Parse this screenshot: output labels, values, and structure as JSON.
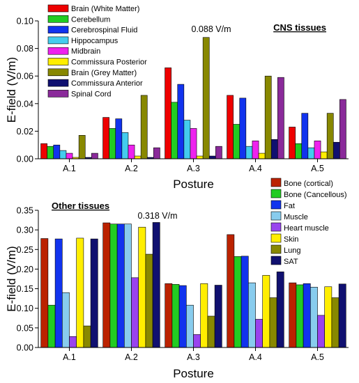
{
  "chart_data": [
    {
      "type": "bar",
      "panel_title": "CNS tissues",
      "categories": [
        "A.1",
        "A.2",
        "A.3",
        "A.4",
        "A.5"
      ],
      "xlabel": "Posture",
      "ylabel": "E-field (V/m)",
      "ylim": [
        0,
        0.1
      ],
      "yticks": [
        "0.00",
        "0.02",
        "0.04",
        "0.06",
        "0.08",
        "0.10"
      ],
      "annotation": "0.088 V/m",
      "grid": false,
      "legend_position": "top-left",
      "series": [
        {
          "name": "Brain (White Matter)",
          "color": "#ee0000",
          "values": [
            0.011,
            0.03,
            0.066,
            0.046,
            0.023
          ]
        },
        {
          "name": "Cerebellum",
          "color": "#22cc22",
          "values": [
            0.009,
            0.022,
            0.041,
            0.025,
            0.011
          ]
        },
        {
          "name": "Cerebrospinal Fluid",
          "color": "#1133ee",
          "values": [
            0.01,
            0.029,
            0.054,
            0.044,
            0.033
          ]
        },
        {
          "name": "Hippocampus",
          "color": "#44ccee",
          "values": [
            0.006,
            0.019,
            0.028,
            0.009,
            0.008
          ]
        },
        {
          "name": "Midbrain",
          "color": "#ee22ee",
          "values": [
            0.004,
            0.01,
            0.022,
            0.013,
            0.013
          ]
        },
        {
          "name": "Commissura Posterior",
          "color": "#ffee00",
          "values": [
            0.001,
            0.002,
            0.002,
            0.004,
            0.005
          ]
        },
        {
          "name": "Brain (Grey Matter)",
          "color": "#888800",
          "values": [
            0.017,
            0.046,
            0.088,
            0.06,
            0.033
          ]
        },
        {
          "name": "Commissura Anterior",
          "color": "#101070",
          "values": [
            0.001,
            0.001,
            0.002,
            0.014,
            0.012
          ]
        },
        {
          "name": "Spinal Cord",
          "color": "#8a2a9a",
          "values": [
            0.004,
            0.008,
            0.009,
            0.059,
            0.043
          ]
        }
      ]
    },
    {
      "type": "bar",
      "panel_title": "Other tissues",
      "categories": [
        "A.1",
        "A.2",
        "A.3",
        "A.4",
        "A.5"
      ],
      "xlabel": "Posture",
      "ylabel": "E-field (V/m)",
      "ylim": [
        0,
        0.35
      ],
      "yticks": [
        "0.00",
        "0.05",
        "0.10",
        "0.15",
        "0.20",
        "0.25",
        "0.30",
        "0.35"
      ],
      "annotation": "0.318 V/m",
      "grid": false,
      "legend_position": "top-right",
      "series": [
        {
          "name": "Bone (cortical)",
          "color": "#bb2200",
          "values": [
            0.278,
            0.318,
            0.163,
            0.288,
            0.165
          ]
        },
        {
          "name": "Bone (Cancellous)",
          "color": "#22cc22",
          "values": [
            0.108,
            0.315,
            0.161,
            0.232,
            0.16
          ]
        },
        {
          "name": "Fat",
          "color": "#1133ee",
          "values": [
            0.277,
            0.315,
            0.158,
            0.233,
            0.163
          ]
        },
        {
          "name": "Muscle",
          "color": "#88ccee",
          "values": [
            0.14,
            0.315,
            0.108,
            0.165,
            0.154
          ]
        },
        {
          "name": "Heart muscle",
          "color": "#9944ee",
          "values": [
            0.028,
            0.178,
            0.033,
            0.072,
            0.082
          ]
        },
        {
          "name": "Skin",
          "color": "#ffee00",
          "values": [
            0.279,
            0.307,
            0.163,
            0.184,
            0.155
          ]
        },
        {
          "name": "Lung",
          "color": "#888800",
          "values": [
            0.055,
            0.238,
            0.08,
            0.127,
            0.127
          ]
        },
        {
          "name": "SAT",
          "color": "#101070",
          "values": [
            0.277,
            0.319,
            0.159,
            0.193,
            0.162
          ]
        }
      ]
    }
  ]
}
